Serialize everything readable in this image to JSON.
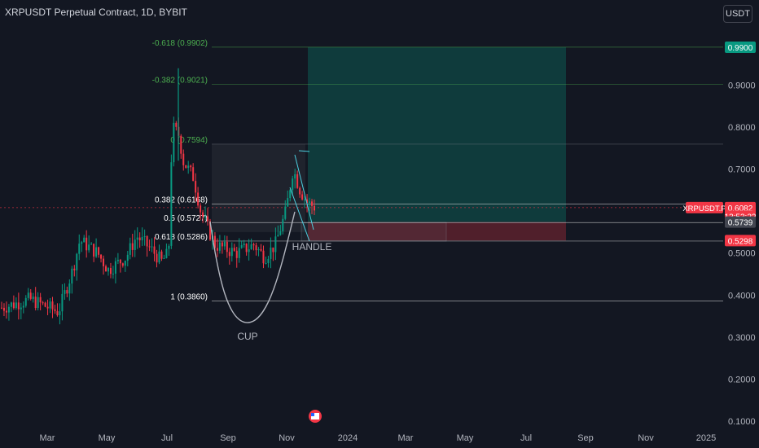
{
  "header": {
    "title": "XRPUSDT Perpetual Contract, 1D, BYBIT",
    "unit": "USDT"
  },
  "chart_data": {
    "type": "candlestick",
    "yrange": [
      0.08,
      1.02
    ],
    "y_ticks": [
      0.1,
      0.2,
      0.3,
      0.4,
      0.5,
      0.6,
      0.7,
      0.8,
      0.9
    ],
    "y_tick_labels": [
      "0.1000",
      "0.2000",
      "0.3000",
      "0.4000",
      "0.5000",
      "0.6000",
      "0.7000",
      "0.8000",
      "0.9000"
    ],
    "x_ticks": [
      "Mar",
      "May",
      "Jul",
      "Sep",
      "Nov",
      "2024",
      "Mar",
      "May",
      "Jul",
      "Sep",
      "Nov",
      "2025"
    ],
    "price_path": [
      {
        "t": 0,
        "v": 0.37
      },
      {
        "t": 0.04,
        "v": 0.39
      },
      {
        "t": 0.08,
        "v": 0.36
      },
      {
        "t": 0.1,
        "v": 0.46
      },
      {
        "t": 0.11,
        "v": 0.53
      },
      {
        "t": 0.135,
        "v": 0.5
      },
      {
        "t": 0.15,
        "v": 0.46
      },
      {
        "t": 0.175,
        "v": 0.49
      },
      {
        "t": 0.19,
        "v": 0.54
      },
      {
        "t": 0.21,
        "v": 0.51
      },
      {
        "t": 0.225,
        "v": 0.48
      },
      {
        "t": 0.235,
        "v": 0.5
      },
      {
        "t": 0.24,
        "v": 0.8
      },
      {
        "t": 0.25,
        "v": 0.78
      },
      {
        "t": 0.255,
        "v": 0.72
      },
      {
        "t": 0.27,
        "v": 0.68
      },
      {
        "t": 0.28,
        "v": 0.6
      },
      {
        "t": 0.3,
        "v": 0.52
      },
      {
        "t": 0.33,
        "v": 0.5
      },
      {
        "t": 0.355,
        "v": 0.52
      },
      {
        "t": 0.37,
        "v": 0.49
      },
      {
        "t": 0.385,
        "v": 0.52
      },
      {
        "t": 0.4,
        "v": 0.6
      },
      {
        "t": 0.41,
        "v": 0.7
      },
      {
        "t": 0.42,
        "v": 0.65
      },
      {
        "t": 0.43,
        "v": 0.62
      },
      {
        "t": 0.44,
        "v": 0.61
      }
    ],
    "fib_levels": [
      {
        "label": "-0.618 (0.9902)",
        "value": 0.9902,
        "color": "#4caf50",
        "text_color": "#4caf50"
      },
      {
        "label": "-0.382 (0.9021)",
        "value": 0.9021,
        "color": "#4caf50",
        "text_color": "#4caf50"
      },
      {
        "label": "0 (0.7594)",
        "value": 0.7594,
        "color": "#787b86",
        "text_color": "#4caf50"
      },
      {
        "label": "0.382 (0.6168)",
        "value": 0.6168,
        "color": "#ffffff",
        "text_color": "#ffffff"
      },
      {
        "label": "0.5 (0.5727)",
        "value": 0.5727,
        "color": "#ffffff",
        "text_color": "#ffffff"
      },
      {
        "label": "0.618 (0.5286)",
        "value": 0.5286,
        "color": "#ffffff",
        "text_color": "#ffffff"
      },
      {
        "label": "1 (0.3860)",
        "value": 0.386,
        "color": "#ffffff",
        "text_color": "#ffffff"
      }
    ],
    "annotations": [
      "CUP",
      "HANDLE"
    ],
    "price_labels": [
      {
        "text": "0.9900",
        "value": 0.99,
        "bg": "#089981",
        "fg": "#ffffff"
      },
      {
        "text": "0.6082",
        "value": 0.6082,
        "bg": "#f23645",
        "fg": "#ffffff"
      },
      {
        "text": "13:53:22",
        "value": 0.5878,
        "bg": "#f23645",
        "fg": "#ffffff"
      },
      {
        "text": "0.5739",
        "value": 0.5739,
        "bg": "#434651",
        "fg": "#ffffff"
      },
      {
        "text": "0.5298",
        "value": 0.5298,
        "bg": "#f23645",
        "fg": "#ffffff"
      }
    ],
    "symbol_tag": {
      "text": "XRPUSDT.P",
      "value": 0.6082,
      "bg": "#f23645",
      "fg": "#ffffff"
    },
    "long_position": {
      "entry": 0.5739,
      "target": 0.99,
      "stop": 0.5298
    },
    "colors": {
      "up": "#089981",
      "down": "#f23645",
      "background": "#131722",
      "axis_text": "#b2b5be",
      "grid": "#1e222d"
    }
  }
}
